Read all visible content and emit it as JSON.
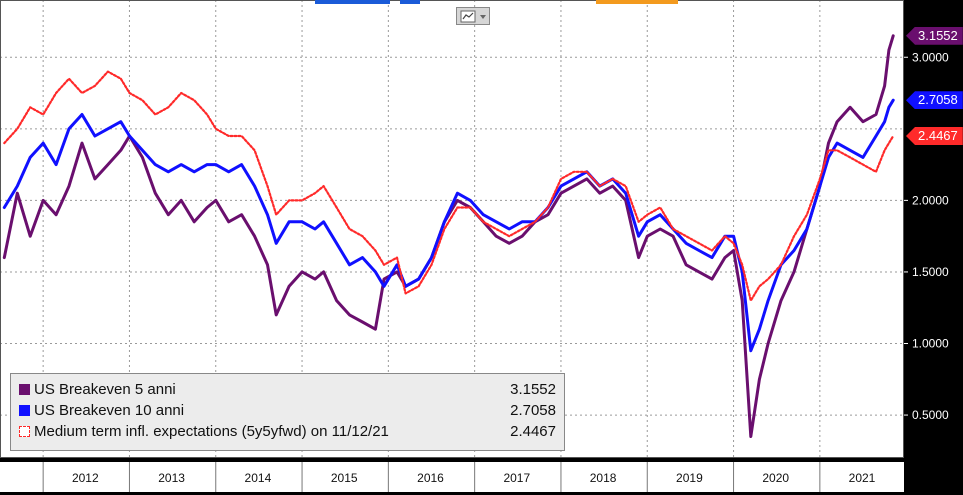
{
  "chart_data": {
    "type": "line",
    "x_axis_labels": [
      "2012",
      "2013",
      "2014",
      "2015",
      "2016",
      "2017",
      "2018",
      "2019",
      "2020",
      "2021"
    ],
    "ylim": [
      0.2,
      3.4
    ],
    "y_ticks": [
      "0.5000",
      "1.0000",
      "1.5000",
      "2.0000",
      "3.0000"
    ],
    "grid": true,
    "legend_position": "bottom-left",
    "series": [
      {
        "name": "US Breakeven 5 anni",
        "value_text": "3.1552",
        "badge_text": "3.1552",
        "color": "#6a0f6e",
        "style": "solid",
        "points": [
          [
            2011.55,
            1.6
          ],
          [
            2011.7,
            2.05
          ],
          [
            2011.85,
            1.75
          ],
          [
            2012.0,
            2.0
          ],
          [
            2012.15,
            1.9
          ],
          [
            2012.3,
            2.1
          ],
          [
            2012.45,
            2.4
          ],
          [
            2012.6,
            2.15
          ],
          [
            2012.75,
            2.25
          ],
          [
            2012.9,
            2.35
          ],
          [
            2013.0,
            2.45
          ],
          [
            2013.15,
            2.3
          ],
          [
            2013.3,
            2.05
          ],
          [
            2013.45,
            1.9
          ],
          [
            2013.6,
            2.0
          ],
          [
            2013.75,
            1.85
          ],
          [
            2013.9,
            1.95
          ],
          [
            2014.0,
            2.0
          ],
          [
            2014.15,
            1.85
          ],
          [
            2014.3,
            1.9
          ],
          [
            2014.45,
            1.75
          ],
          [
            2014.6,
            1.55
          ],
          [
            2014.7,
            1.2
          ],
          [
            2014.85,
            1.4
          ],
          [
            2015.0,
            1.5
          ],
          [
            2015.15,
            1.45
          ],
          [
            2015.25,
            1.5
          ],
          [
            2015.4,
            1.3
          ],
          [
            2015.55,
            1.2
          ],
          [
            2015.7,
            1.15
          ],
          [
            2015.85,
            1.1
          ],
          [
            2015.95,
            1.45
          ],
          [
            2016.1,
            1.5
          ],
          [
            2016.2,
            1.4
          ],
          [
            2016.35,
            1.45
          ],
          [
            2016.5,
            1.6
          ],
          [
            2016.65,
            1.85
          ],
          [
            2016.8,
            2.0
          ],
          [
            2016.95,
            1.95
          ],
          [
            2017.1,
            1.85
          ],
          [
            2017.25,
            1.75
          ],
          [
            2017.4,
            1.7
          ],
          [
            2017.55,
            1.75
          ],
          [
            2017.7,
            1.85
          ],
          [
            2017.85,
            1.9
          ],
          [
            2018.0,
            2.05
          ],
          [
            2018.15,
            2.1
          ],
          [
            2018.3,
            2.15
          ],
          [
            2018.45,
            2.05
          ],
          [
            2018.6,
            2.1
          ],
          [
            2018.75,
            2.0
          ],
          [
            2018.9,
            1.6
          ],
          [
            2019.0,
            1.75
          ],
          [
            2019.15,
            1.8
          ],
          [
            2019.3,
            1.75
          ],
          [
            2019.45,
            1.55
          ],
          [
            2019.6,
            1.5
          ],
          [
            2019.75,
            1.45
          ],
          [
            2019.9,
            1.6
          ],
          [
            2020.0,
            1.65
          ],
          [
            2020.1,
            1.3
          ],
          [
            2020.2,
            0.35
          ],
          [
            2020.3,
            0.75
          ],
          [
            2020.4,
            1.0
          ],
          [
            2020.55,
            1.3
          ],
          [
            2020.7,
            1.5
          ],
          [
            2020.85,
            1.8
          ],
          [
            2021.0,
            2.1
          ],
          [
            2021.1,
            2.4
          ],
          [
            2021.2,
            2.55
          ],
          [
            2021.35,
            2.65
          ],
          [
            2021.5,
            2.55
          ],
          [
            2021.65,
            2.6
          ],
          [
            2021.75,
            2.8
          ],
          [
            2021.8,
            3.05
          ],
          [
            2021.85,
            3.15
          ]
        ]
      },
      {
        "name": "US Breakeven 10 anni",
        "value_text": "2.7058",
        "badge_text": "2.7058",
        "color": "#1010ff",
        "style": "solid",
        "points": [
          [
            2011.55,
            1.95
          ],
          [
            2011.7,
            2.1
          ],
          [
            2011.85,
            2.3
          ],
          [
            2012.0,
            2.4
          ],
          [
            2012.15,
            2.25
          ],
          [
            2012.3,
            2.5
          ],
          [
            2012.45,
            2.6
          ],
          [
            2012.6,
            2.45
          ],
          [
            2012.75,
            2.5
          ],
          [
            2012.9,
            2.55
          ],
          [
            2013.0,
            2.45
          ],
          [
            2013.15,
            2.35
          ],
          [
            2013.3,
            2.25
          ],
          [
            2013.45,
            2.2
          ],
          [
            2013.6,
            2.25
          ],
          [
            2013.75,
            2.2
          ],
          [
            2013.9,
            2.25
          ],
          [
            2014.0,
            2.25
          ],
          [
            2014.15,
            2.2
          ],
          [
            2014.3,
            2.25
          ],
          [
            2014.45,
            2.1
          ],
          [
            2014.6,
            1.9
          ],
          [
            2014.7,
            1.7
          ],
          [
            2014.85,
            1.85
          ],
          [
            2015.0,
            1.85
          ],
          [
            2015.15,
            1.8
          ],
          [
            2015.25,
            1.85
          ],
          [
            2015.4,
            1.7
          ],
          [
            2015.55,
            1.55
          ],
          [
            2015.7,
            1.6
          ],
          [
            2015.85,
            1.5
          ],
          [
            2015.95,
            1.4
          ],
          [
            2016.1,
            1.55
          ],
          [
            2016.2,
            1.4
          ],
          [
            2016.35,
            1.45
          ],
          [
            2016.5,
            1.6
          ],
          [
            2016.65,
            1.85
          ],
          [
            2016.8,
            2.05
          ],
          [
            2016.95,
            2.0
          ],
          [
            2017.1,
            1.9
          ],
          [
            2017.25,
            1.85
          ],
          [
            2017.4,
            1.8
          ],
          [
            2017.55,
            1.85
          ],
          [
            2017.7,
            1.85
          ],
          [
            2017.85,
            1.95
          ],
          [
            2018.0,
            2.1
          ],
          [
            2018.15,
            2.15
          ],
          [
            2018.3,
            2.2
          ],
          [
            2018.45,
            2.1
          ],
          [
            2018.6,
            2.15
          ],
          [
            2018.75,
            2.05
          ],
          [
            2018.9,
            1.75
          ],
          [
            2019.0,
            1.85
          ],
          [
            2019.15,
            1.9
          ],
          [
            2019.3,
            1.8
          ],
          [
            2019.45,
            1.7
          ],
          [
            2019.6,
            1.65
          ],
          [
            2019.75,
            1.6
          ],
          [
            2019.9,
            1.75
          ],
          [
            2020.0,
            1.75
          ],
          [
            2020.1,
            1.5
          ],
          [
            2020.2,
            0.95
          ],
          [
            2020.3,
            1.1
          ],
          [
            2020.4,
            1.3
          ],
          [
            2020.55,
            1.55
          ],
          [
            2020.7,
            1.65
          ],
          [
            2020.85,
            1.8
          ],
          [
            2021.0,
            2.1
          ],
          [
            2021.1,
            2.3
          ],
          [
            2021.2,
            2.4
          ],
          [
            2021.35,
            2.35
          ],
          [
            2021.5,
            2.3
          ],
          [
            2021.65,
            2.45
          ],
          [
            2021.75,
            2.55
          ],
          [
            2021.8,
            2.65
          ],
          [
            2021.85,
            2.7
          ]
        ]
      },
      {
        "name": "Medium term infl. expectations (5y5yfwd) on 11/12/21",
        "value_text": "2.4467",
        "badge_text": "2.4467",
        "color": "#ff2a2a",
        "style": "dotted",
        "points": [
          [
            2011.55,
            2.4
          ],
          [
            2011.7,
            2.5
          ],
          [
            2011.85,
            2.65
          ],
          [
            2012.0,
            2.6
          ],
          [
            2012.15,
            2.75
          ],
          [
            2012.3,
            2.85
          ],
          [
            2012.45,
            2.75
          ],
          [
            2012.6,
            2.8
          ],
          [
            2012.75,
            2.9
          ],
          [
            2012.9,
            2.85
          ],
          [
            2013.0,
            2.75
          ],
          [
            2013.15,
            2.7
          ],
          [
            2013.3,
            2.6
          ],
          [
            2013.45,
            2.65
          ],
          [
            2013.6,
            2.75
          ],
          [
            2013.75,
            2.7
          ],
          [
            2013.9,
            2.6
          ],
          [
            2014.0,
            2.5
          ],
          [
            2014.15,
            2.45
          ],
          [
            2014.3,
            2.45
          ],
          [
            2014.45,
            2.35
          ],
          [
            2014.6,
            2.1
          ],
          [
            2014.7,
            1.9
          ],
          [
            2014.85,
            2.0
          ],
          [
            2015.0,
            2.0
          ],
          [
            2015.15,
            2.05
          ],
          [
            2015.25,
            2.1
          ],
          [
            2015.4,
            1.95
          ],
          [
            2015.55,
            1.8
          ],
          [
            2015.7,
            1.75
          ],
          [
            2015.85,
            1.65
          ],
          [
            2015.95,
            1.55
          ],
          [
            2016.1,
            1.6
          ],
          [
            2016.2,
            1.35
          ],
          [
            2016.35,
            1.4
          ],
          [
            2016.5,
            1.55
          ],
          [
            2016.65,
            1.8
          ],
          [
            2016.8,
            1.95
          ],
          [
            2016.95,
            1.95
          ],
          [
            2017.1,
            1.85
          ],
          [
            2017.25,
            1.8
          ],
          [
            2017.4,
            1.75
          ],
          [
            2017.55,
            1.8
          ],
          [
            2017.7,
            1.85
          ],
          [
            2017.85,
            1.95
          ],
          [
            2018.0,
            2.15
          ],
          [
            2018.15,
            2.2
          ],
          [
            2018.3,
            2.2
          ],
          [
            2018.45,
            2.1
          ],
          [
            2018.6,
            2.15
          ],
          [
            2018.75,
            2.1
          ],
          [
            2018.9,
            1.85
          ],
          [
            2019.0,
            1.9
          ],
          [
            2019.15,
            1.95
          ],
          [
            2019.3,
            1.8
          ],
          [
            2019.45,
            1.75
          ],
          [
            2019.6,
            1.7
          ],
          [
            2019.75,
            1.65
          ],
          [
            2019.9,
            1.75
          ],
          [
            2020.0,
            1.7
          ],
          [
            2020.1,
            1.55
          ],
          [
            2020.2,
            1.3
          ],
          [
            2020.3,
            1.4
          ],
          [
            2020.4,
            1.45
          ],
          [
            2020.55,
            1.55
          ],
          [
            2020.7,
            1.75
          ],
          [
            2020.85,
            1.9
          ],
          [
            2021.0,
            2.15
          ],
          [
            2021.1,
            2.35
          ],
          [
            2021.2,
            2.35
          ],
          [
            2021.35,
            2.3
          ],
          [
            2021.5,
            2.25
          ],
          [
            2021.65,
            2.2
          ],
          [
            2021.75,
            2.35
          ],
          [
            2021.8,
            2.4
          ],
          [
            2021.85,
            2.45
          ]
        ]
      }
    ]
  },
  "colors": {
    "background": "#000000",
    "plot_background": "#ffffff",
    "grid": "#9a9a9a",
    "axis_text": "#ffffff",
    "legend_background": "#ececec"
  },
  "toolbar": {
    "chart_icon": "line-chart-icon"
  }
}
